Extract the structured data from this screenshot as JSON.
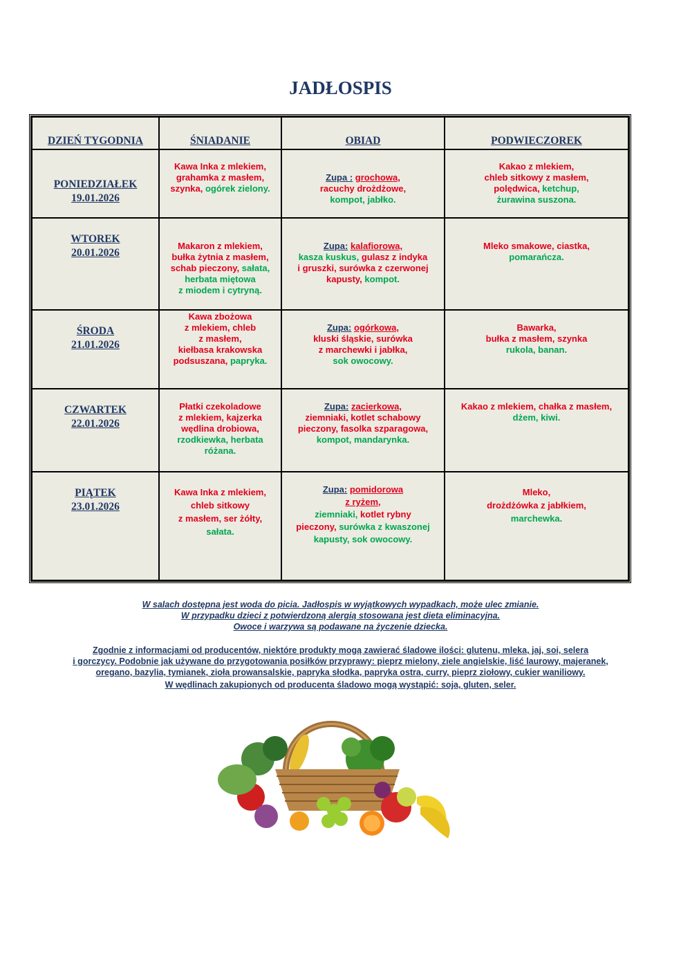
{
  "title": "JADŁOSPIS",
  "headers": {
    "day": "DZIEŃ TYGODNIA",
    "breakfast": "ŚNIADANIE",
    "lunch": "OBIAD",
    "snack": "PODWIECZOREK"
  },
  "days": [
    {
      "name": "PONIEDZIAŁEK",
      "date": "19.01.2026",
      "breakfast": {
        "l1": "Kawa Inka z mlekiem,",
        "l2": "grahamka z masłem,",
        "l3a": "szynka, ",
        "l3b": "ogórek zielony."
      },
      "lunch": {
        "zupa": "Zupa :",
        "soup": "grochowa,",
        "l2": "racuchy drożdżowe,",
        "l3": "kompot, jabłko."
      },
      "snack": {
        "l1": "Kakao z mlekiem,",
        "l2": "chleb sitkowy z masłem,",
        "l3a": "polędwica, ",
        "l3b": "ketchup,",
        "l4": "żurawina suszona."
      }
    },
    {
      "name": "WTOREK",
      "date": "20.01.2026",
      "breakfast": {
        "l1": "Makaron z mlekiem,",
        "l2": "bułka żytnia z masłem,",
        "l3a": "schab pieczony, ",
        "l3b": "sałata,",
        "l4": "herbata miętowa",
        "l5": "z miodem i cytryną."
      },
      "lunch": {
        "zupa": "Zupa:",
        "soup": "kalafiorowa,",
        "l2a": "kasza kuskus, ",
        "l2b": "gulasz z indyka",
        "l3a": "i gruszki, ",
        "l3b": "surówka z czerwonej",
        "l4a": "kapusty, ",
        "l4b": "kompot."
      },
      "snack": {
        "l1": "Mleko smakowe, ciastka,",
        "l2": "pomarańcza."
      }
    },
    {
      "name": "ŚRODA",
      "date": "21.01.2026",
      "breakfast": {
        "l1": "Kawa zbożowa",
        "l2": "z mlekiem, chleb",
        "l3": "z masłem,",
        "l4": "kiełbasa krakowska",
        "l5a": "podsuszana, ",
        "l5b": "papryka."
      },
      "lunch": {
        "zupa": "Zupa:",
        "soup": "ogórkowa,",
        "l2": "kluski śląskie, surówka",
        "l3": "z marchewki i jabłka,",
        "l4": "sok owocowy."
      },
      "snack": {
        "l1": "Bawarka,",
        "l2": "bułka z masłem, szynka",
        "l3": "rukola, banan."
      }
    },
    {
      "name": "CZWARTEK",
      "date": "22.01.2026",
      "breakfast": {
        "l1": "Płatki czekoladowe",
        "l2": "z mlekiem, kajzerka",
        "l3": "wędlina drobiowa,",
        "l4": "rzodkiewka, herbata",
        "l5": "różana."
      },
      "lunch": {
        "zupa": "Zupa:",
        "soup": "zacierkowa,",
        "l2": "ziemniaki, kotlet schabowy",
        "l3": "pieczony, fasolka szparagowa,",
        "l4": "kompot, mandarynka."
      },
      "snack": {
        "l1": "Kakao z mlekiem, chałka z masłem,",
        "l2": "dżem, kiwi."
      }
    },
    {
      "name": "PIĄTEK",
      "date": "23.01.2026",
      "breakfast": {
        "l1": "Kawa Inka z mlekiem,",
        "l2": "chleb sitkowy",
        "l3": "z masłem, ser żółty,",
        "l4": "sałata."
      },
      "lunch": {
        "zupa": "Zupa:",
        "soup": "pomidorowa",
        "soup2": "z ryżem,",
        "l3a": "ziemniaki, ",
        "l3b": "kotlet rybny",
        "l4a": "pieczony, ",
        "l4b": "surówka z kwaszonej",
        "l5": "kapusty, sok owocowy."
      },
      "snack": {
        "l1": "Mleko,",
        "l2": "drożdżówka z jabłkiem,",
        "l3": "marchewka."
      }
    }
  ],
  "notes": {
    "n1": "W salach dostępna jest woda do picia.  Jadłospis w wyjątkowych wypadkach, może ulec zmianie.",
    "n2": "W przypadku dzieci z potwierdzoną alergią stosowana jest dieta eliminacyjna.",
    "n3": "Owoce i warzywa są podawane na życzenie dziecka.",
    "a1": "Zgodnie z informacjami od producentów, niektóre produkty mogą zawierać śladowe ilości: glutenu, mleka, jaj, soi, selera",
    "a2": "i gorczycy. Podobnie jak używane do przygotowania posiłków przyprawy: pieprz mielony, ziele angielskie, liść laurowy, majeranek,",
    "a3": "oregano, bazylia, tymianek, zioła prowansalskie, papryka słodka, papryka ostra, curry, pieprz ziołowy, cukier waniliowy.",
    "a4": "W wędlinach zakupionych od producenta śladowo mogą wystąpić: soja, gluten, seler."
  },
  "colors": {
    "navy": "#1f3864",
    "red": "#e0001b",
    "green": "#00a650",
    "cell_bg": "#ecebe2"
  },
  "image": {
    "icon": "vegetable-basket-image"
  }
}
